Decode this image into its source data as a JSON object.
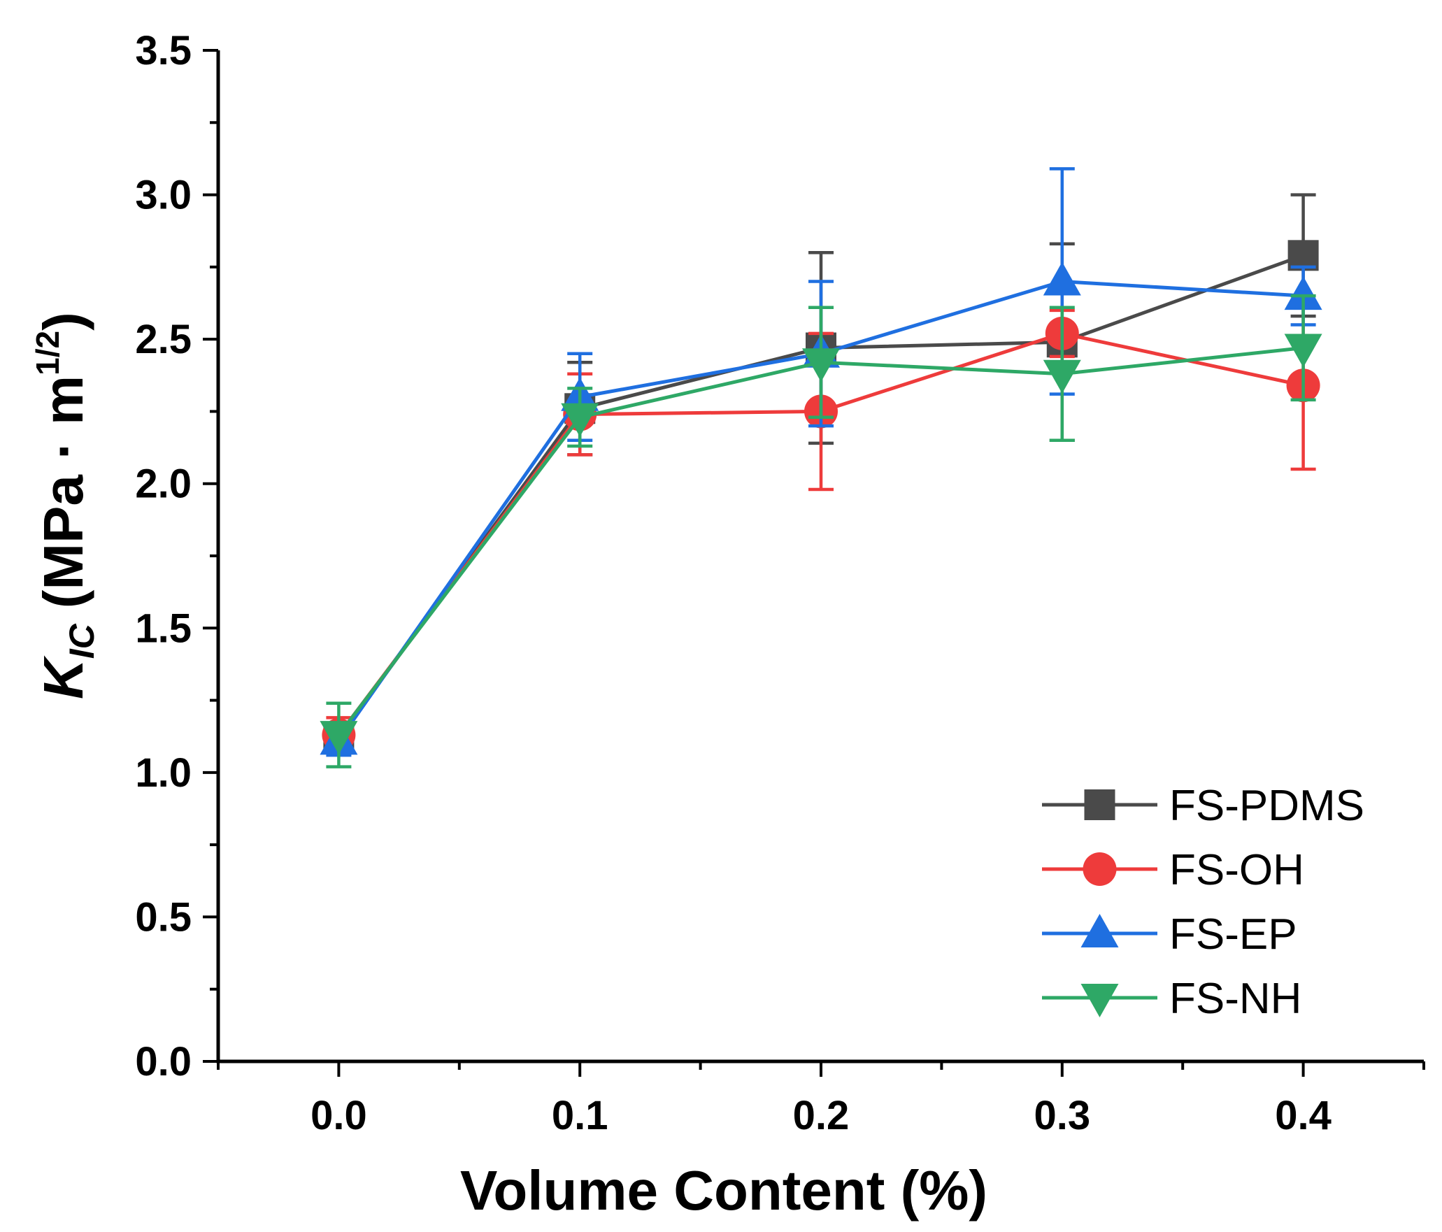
{
  "chart_data": {
    "type": "line",
    "xlabel": "Volume Content (%)",
    "ylabel": {
      "symbol": "K",
      "subscript": "IC",
      "unit_prefix": "(MPa · m",
      "superscript": "1/2",
      "unit_suffix": ")"
    },
    "xlim": [
      -0.05,
      0.45
    ],
    "ylim": [
      0.0,
      3.5
    ],
    "x": [
      0.0,
      0.1,
      0.2,
      0.3,
      0.4
    ],
    "x_tick_labels": [
      "0.0",
      "0.1",
      "0.2",
      "0.3",
      "0.4"
    ],
    "y_tick_labels": [
      "0.0",
      "0.5",
      "1.0",
      "1.5",
      "2.0",
      "2.5",
      "3.0",
      "3.5"
    ],
    "legend_position": "bottom-right",
    "series": [
      {
        "name": "FS-PDMS",
        "color": "#4a4a4a",
        "marker": "square",
        "values": [
          1.12,
          2.26,
          2.47,
          2.49,
          2.79
        ],
        "errors": [
          0.05,
          0.16,
          0.33,
          0.34,
          0.21
        ]
      },
      {
        "name": "FS-OH",
        "color": "#ee3b3b",
        "marker": "circle",
        "values": [
          1.13,
          2.24,
          2.25,
          2.52,
          2.34
        ],
        "errors": [
          0.06,
          0.14,
          0.27,
          0.08,
          0.29
        ]
      },
      {
        "name": "FS-EP",
        "color": "#1f6fe0",
        "marker": "triangle-up",
        "values": [
          1.11,
          2.3,
          2.45,
          2.7,
          2.65
        ],
        "errors": [
          0.05,
          0.15,
          0.25,
          0.39,
          0.1
        ]
      },
      {
        "name": "FS-NH",
        "color": "#2ea866",
        "marker": "triangle-down",
        "values": [
          1.13,
          2.23,
          2.42,
          2.38,
          2.47
        ],
        "errors": [
          0.11,
          0.1,
          0.19,
          0.23,
          0.18
        ]
      }
    ]
  }
}
